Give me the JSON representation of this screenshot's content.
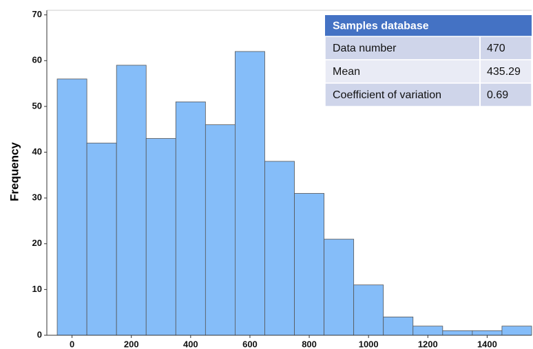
{
  "chart_data": {
    "type": "histogram",
    "y_label": "Frequency",
    "bins": [
      -50,
      50,
      150,
      250,
      350,
      450,
      550,
      650,
      750,
      850,
      950,
      1050,
      1150,
      1250,
      1350,
      1450,
      1550
    ],
    "values": [
      56,
      42,
      59,
      43,
      51,
      46,
      62,
      38,
      31,
      21,
      11,
      4,
      2,
      1,
      1,
      2
    ],
    "color": "#85bdf9",
    "xlim": [
      -85,
      1550
    ],
    "xticks": [
      0,
      200,
      400,
      600,
      800,
      1000,
      1200,
      1400
    ],
    "ylim": [
      0,
      71
    ],
    "yticks": [
      0,
      10,
      20,
      30,
      40,
      50,
      60,
      70
    ],
    "grid": false,
    "table": {
      "title": "Samples database",
      "rows": [
        [
          "Data number",
          470
        ],
        [
          "Mean",
          435.29
        ],
        [
          "Coefficient of variation",
          0.69
        ]
      ]
    }
  }
}
